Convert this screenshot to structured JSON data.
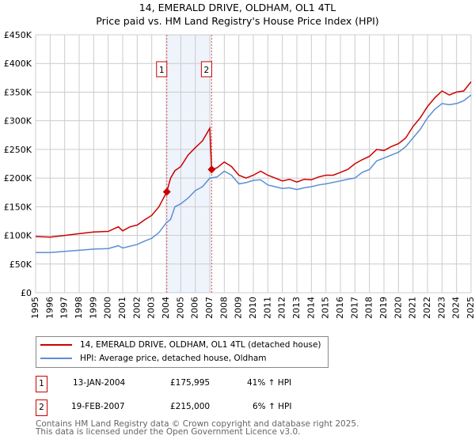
{
  "chart_data": {
    "type": "line",
    "title": "14, EMERALD DRIVE, OLDHAM, OL1 4TL",
    "subtitle": "Price paid vs. HM Land Registry's House Price Index (HPI)",
    "xlim": [
      1995,
      2025
    ],
    "ylim": [
      0,
      450000
    ],
    "x_ticks": [
      "1995",
      "1996",
      "1997",
      "1998",
      "1999",
      "2000",
      "2001",
      "2002",
      "2003",
      "2004",
      "2005",
      "2006",
      "2007",
      "2008",
      "2009",
      "2010",
      "2011",
      "2012",
      "2013",
      "2014",
      "2015",
      "2016",
      "2017",
      "2018",
      "2019",
      "2020",
      "2021",
      "2022",
      "2023",
      "2024",
      "2025"
    ],
    "y_ticks": [
      {
        "v": 0,
        "label": "£0"
      },
      {
        "v": 50000,
        "label": "£50K"
      },
      {
        "v": 100000,
        "label": "£100K"
      },
      {
        "v": 150000,
        "label": "£150K"
      },
      {
        "v": 200000,
        "label": "£200K"
      },
      {
        "v": 250000,
        "label": "£250K"
      },
      {
        "v": 300000,
        "label": "£300K"
      },
      {
        "v": 350000,
        "label": "£350K"
      },
      {
        "v": 400000,
        "label": "£400K"
      },
      {
        "v": 450000,
        "label": "£450K"
      }
    ],
    "grid": true,
    "shaded_range": [
      2004.04,
      2007.13
    ],
    "series": [
      {
        "name": "14, EMERALD DRIVE, OLDHAM, OL1 4TL (detached house)",
        "color": "#cc0000",
        "x": [
          1995,
          1996,
          1997,
          1998,
          1999,
          2000,
          2000.7,
          2001,
          2001.5,
          2002,
          2002.5,
          2003,
          2003.5,
          2004.04,
          2004.3,
          2004.6,
          2005,
          2005.5,
          2006,
          2006.5,
          2007.0,
          2007.13,
          2007.5,
          2008,
          2008.5,
          2009,
          2009.5,
          2010,
          2010.5,
          2011,
          2011.5,
          2012,
          2012.5,
          2013,
          2013.5,
          2014,
          2014.5,
          2015,
          2015.5,
          2016,
          2016.5,
          2017,
          2017.5,
          2018,
          2018.5,
          2019,
          2019.5,
          2020,
          2020.5,
          2021,
          2021.5,
          2022,
          2022.5,
          2023,
          2023.5,
          2024,
          2024.5,
          2025
        ],
        "y": [
          98000,
          97000,
          100000,
          103000,
          106000,
          107000,
          115000,
          108000,
          115000,
          118000,
          127000,
          135000,
          150000,
          175995,
          200000,
          213000,
          220000,
          240000,
          253000,
          265000,
          287000,
          215000,
          218000,
          228000,
          220000,
          205000,
          200000,
          205000,
          212000,
          205000,
          200000,
          195000,
          198000,
          193000,
          198000,
          197000,
          202000,
          205000,
          205000,
          210000,
          215000,
          225000,
          232000,
          238000,
          250000,
          248000,
          255000,
          260000,
          270000,
          290000,
          305000,
          325000,
          340000,
          352000,
          345000,
          350000,
          352000,
          368000
        ]
      },
      {
        "name": "HPI: Average price, detached house, Oldham",
        "color": "#5b8fd4",
        "x": [
          1995,
          1996,
          1997,
          1998,
          1999,
          2000,
          2000.7,
          2001,
          2002,
          2002.5,
          2003,
          2003.5,
          2004,
          2004.3,
          2004.6,
          2005,
          2005.5,
          2006,
          2006.5,
          2007,
          2007.5,
          2008,
          2008.5,
          2009,
          2009.5,
          2010,
          2010.5,
          2011,
          2011.5,
          2012,
          2012.5,
          2013,
          2013.5,
          2014,
          2014.5,
          2015,
          2016,
          2016.5,
          2017,
          2017.5,
          2018,
          2018.5,
          2019,
          2019.5,
          2020,
          2020.5,
          2021,
          2021.5,
          2022,
          2022.5,
          2023,
          2023.5,
          2024,
          2024.5,
          2025
        ],
        "y": [
          70000,
          70000,
          72000,
          74000,
          76000,
          77000,
          82000,
          78000,
          84000,
          90000,
          95000,
          105000,
          122000,
          128000,
          150000,
          155000,
          165000,
          178000,
          185000,
          200000,
          202000,
          212000,
          205000,
          190000,
          192000,
          196000,
          197000,
          188000,
          185000,
          182000,
          183000,
          180000,
          183000,
          185000,
          188000,
          190000,
          195000,
          198000,
          200000,
          210000,
          215000,
          230000,
          235000,
          240000,
          245000,
          255000,
          270000,
          285000,
          305000,
          320000,
          330000,
          328000,
          330000,
          335000,
          345000
        ]
      }
    ],
    "sales": [
      {
        "label": "1",
        "x": 2004.04,
        "y": 175995
      },
      {
        "label": "2",
        "x": 2007.13,
        "y": 215000
      }
    ]
  },
  "legend": {
    "property": "14, EMERALD DRIVE, OLDHAM, OL1 4TL (detached house)",
    "hpi": "HPI: Average price, detached house, Oldham"
  },
  "transactions": [
    {
      "num": "1",
      "date": "13-JAN-2004",
      "price": "£175,995",
      "hpi": "41% ↑ HPI"
    },
    {
      "num": "2",
      "date": "19-FEB-2007",
      "price": "£215,000",
      "hpi": "6% ↑ HPI"
    }
  ],
  "footer": {
    "line1": "Contains HM Land Registry data © Crown copyright and database right 2025.",
    "line2": "This data is licensed under the Open Government Licence v3.0."
  }
}
